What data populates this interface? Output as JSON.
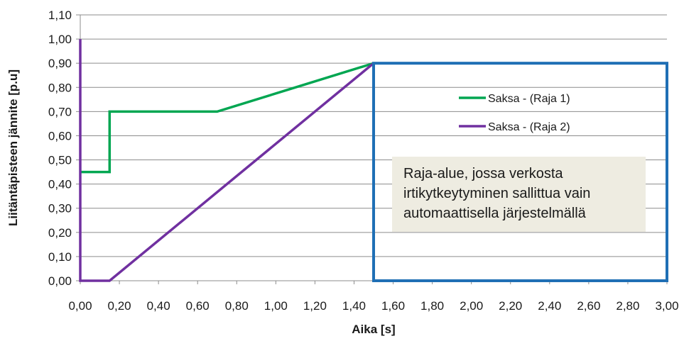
{
  "chart_data": {
    "type": "line",
    "xlabel": "Aika [s]",
    "ylabel": "Liitäntäpisteen jännite [p.u]",
    "xlim": [
      0,
      3
    ],
    "ylim": [
      0,
      1.1
    ],
    "x_ticks": [
      "0,00",
      "0,20",
      "0,40",
      "0,60",
      "0,80",
      "1,00",
      "1,20",
      "1,40",
      "1,60",
      "1,80",
      "2,00",
      "2,20",
      "2,40",
      "2,60",
      "2,80",
      "3,00"
    ],
    "y_ticks": [
      "0,00",
      "0,10",
      "0,20",
      "0,30",
      "0,40",
      "0,50",
      "0,60",
      "0,70",
      "0,80",
      "0,90",
      "1,00",
      "1,10"
    ],
    "grid": "horizontal",
    "legend_position": "right",
    "series": [
      {
        "name": "Saksa - (Raja 1)",
        "color": "#00a651",
        "points": [
          [
            0,
            0.45
          ],
          [
            0.15,
            0.45
          ],
          [
            0.15,
            0.7
          ],
          [
            0.7,
            0.7
          ],
          [
            1.5,
            0.9
          ],
          [
            3.0,
            0.9
          ]
        ]
      },
      {
        "name": "Saksa - (Raja 2)",
        "color": "#7030a0",
        "points": [
          [
            0,
            1.0
          ],
          [
            0,
            0
          ],
          [
            0.15,
            0
          ],
          [
            1.5,
            0.9
          ],
          [
            3.0,
            0.9
          ]
        ]
      }
    ],
    "region": {
      "x_range": [
        1.5,
        3.0
      ],
      "y_range": [
        0,
        0.9
      ],
      "color": "#1f6fb5"
    },
    "annotation": {
      "lines": [
        "Raja-alue, jossa verkosta",
        "irtikytkeytyminen sallittua vain",
        "automaattisella järjestelmällä"
      ],
      "background": "#eeece1"
    }
  }
}
